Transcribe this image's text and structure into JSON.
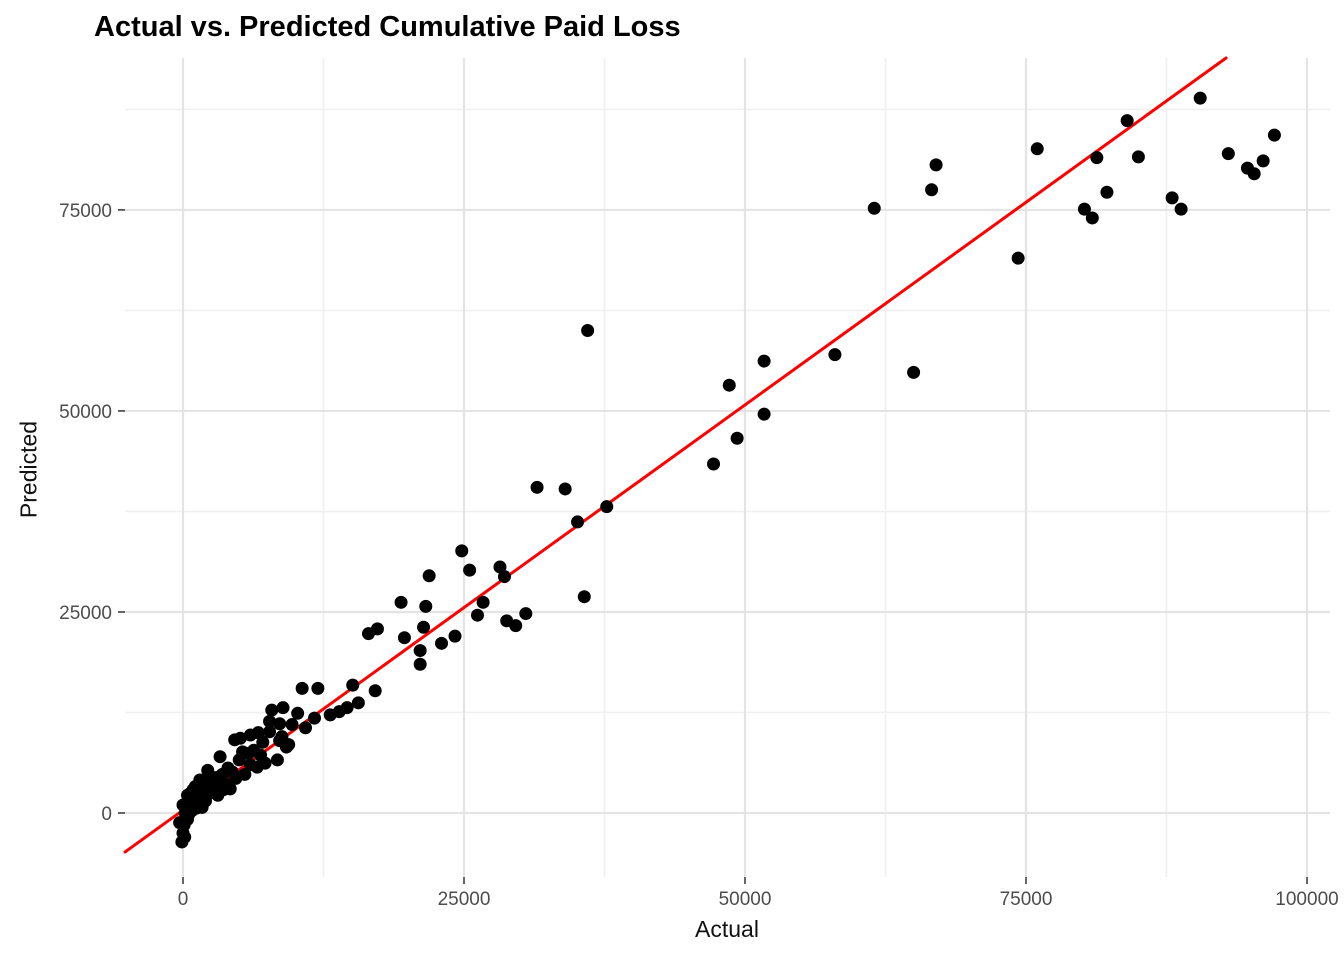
{
  "chart_data": {
    "type": "scatter",
    "title": "Actual vs. Predicted Cumulative Paid Loss",
    "xlabel": "Actual",
    "ylabel": "Predicted",
    "xlim": [
      -5160,
      102046
    ],
    "ylim": [
      -7959,
      93892
    ],
    "x_ticks": [
      0,
      25000,
      50000,
      75000,
      100000
    ],
    "y_ticks": [
      0,
      25000,
      50000,
      75000
    ],
    "x_minor_ticks": [
      12500,
      37500,
      62500,
      87500
    ],
    "y_minor_ticks": [
      12500,
      37500,
      62500,
      87500
    ],
    "grid": {
      "show": true,
      "major_color": "#E4E4E4",
      "minor_color": "#F0F0F0",
      "background": "#FFFFFF"
    },
    "tick_label_color": "#4D4D4D",
    "tick_mark_color": "#333333",
    "point_color": "#000000",
    "point_radius": 6.5,
    "legend": "none",
    "reference_line": {
      "name": "fit-line",
      "color": "#FF0000",
      "slope": 1.008,
      "intercept": 350,
      "width": 3
    },
    "points": [
      [
        61500,
        75200
      ],
      [
        67000,
        80600
      ],
      [
        66600,
        77500
      ],
      [
        76000,
        82600
      ],
      [
        84000,
        86100
      ],
      [
        81300,
        81500
      ],
      [
        85000,
        81600
      ],
      [
        90500,
        88900
      ],
      [
        82200,
        77200
      ],
      [
        80200,
        75100
      ],
      [
        80900,
        74000
      ],
      [
        88000,
        76500
      ],
      [
        88800,
        75100
      ],
      [
        93000,
        82000
      ],
      [
        94700,
        80200
      ],
      [
        95300,
        79500
      ],
      [
        96100,
        81100
      ],
      [
        97100,
        84300
      ],
      [
        74300,
        69000
      ],
      [
        36000,
        60000
      ],
      [
        58000,
        57000
      ],
      [
        65000,
        54800
      ],
      [
        51700,
        56200
      ],
      [
        48600,
        53200
      ],
      [
        51700,
        49600
      ],
      [
        49300,
        46600
      ],
      [
        47200,
        43400
      ],
      [
        31500,
        40500
      ],
      [
        34000,
        40300
      ],
      [
        37700,
        38100
      ],
      [
        35100,
        36200
      ],
      [
        35700,
        26900
      ],
      [
        30500,
        24800
      ],
      [
        24800,
        32600
      ],
      [
        21900,
        29500
      ],
      [
        25500,
        30200
      ],
      [
        28200,
        30600
      ],
      [
        28600,
        29400
      ],
      [
        19400,
        26200
      ],
      [
        21600,
        25700
      ],
      [
        26700,
        26200
      ],
      [
        26200,
        24600
      ],
      [
        21400,
        23100
      ],
      [
        28800,
        23900
      ],
      [
        29600,
        23300
      ],
      [
        16500,
        22300
      ],
      [
        17300,
        22900
      ],
      [
        19700,
        21800
      ],
      [
        21100,
        20200
      ],
      [
        24200,
        22000
      ],
      [
        23000,
        21100
      ],
      [
        21100,
        18500
      ],
      [
        10600,
        15500
      ],
      [
        12000,
        15500
      ],
      [
        15100,
        15900
      ],
      [
        17100,
        15200
      ],
      [
        15600,
        13700
      ],
      [
        14600,
        13100
      ],
      [
        13900,
        12600
      ],
      [
        13100,
        12200
      ],
      [
        11700,
        11800
      ],
      [
        10200,
        12400
      ],
      [
        8900,
        13100
      ],
      [
        7900,
        12800
      ],
      [
        7700,
        11400
      ],
      [
        8600,
        11100
      ],
      [
        9700,
        11000
      ],
      [
        10900,
        10600
      ],
      [
        7700,
        10100
      ],
      [
        6700,
        10000
      ],
      [
        6000,
        9700
      ],
      [
        5100,
        9300
      ],
      [
        7100,
        8800
      ],
      [
        8600,
        9000
      ],
      [
        9400,
        8500
      ],
      [
        8800,
        9500
      ],
      [
        5300,
        7600
      ],
      [
        4600,
        9100
      ],
      [
        4400,
        5100
      ],
      [
        6600,
        5700
      ],
      [
        8400,
        6600
      ],
      [
        9200,
        8200
      ],
      [
        3300,
        7000
      ],
      [
        4000,
        5600
      ],
      [
        2200,
        5300
      ],
      [
        6000,
        6000
      ],
      [
        7300,
        6200
      ],
      [
        1500,
        4100
      ],
      [
        2700,
        3500
      ],
      [
        900,
        2900
      ],
      [
        400,
        2200
      ],
      [
        3600,
        2900
      ],
      [
        0,
        1000
      ],
      [
        200,
        0
      ],
      [
        -300,
        -1200
      ],
      [
        0,
        -2500
      ],
      [
        -100,
        -3600
      ],
      [
        300,
        500
      ],
      [
        600,
        1400
      ],
      [
        1000,
        1800
      ],
      [
        1200,
        600
      ],
      [
        1800,
        2600
      ],
      [
        2000,
        1500
      ],
      [
        2400,
        2500
      ],
      [
        2900,
        4400
      ],
      [
        3100,
        2200
      ],
      [
        3500,
        4800
      ],
      [
        3800,
        3600
      ],
      [
        4200,
        3000
      ],
      [
        4700,
        4300
      ],
      [
        5000,
        6600
      ],
      [
        5500,
        4800
      ],
      [
        5800,
        7400
      ],
      [
        6300,
        7800
      ],
      [
        6900,
        7200
      ],
      [
        400,
        -800
      ],
      [
        100,
        -1500
      ],
      [
        800,
        300
      ],
      [
        1300,
        1100
      ],
      [
        1700,
        700
      ],
      [
        150,
        -3000
      ],
      [
        500,
        -200
      ],
      [
        2500,
        3800
      ],
      [
        1100,
        3300
      ],
      [
        700,
        2500
      ],
      [
        1900,
        3900
      ],
      [
        2300,
        4700
      ]
    ]
  }
}
